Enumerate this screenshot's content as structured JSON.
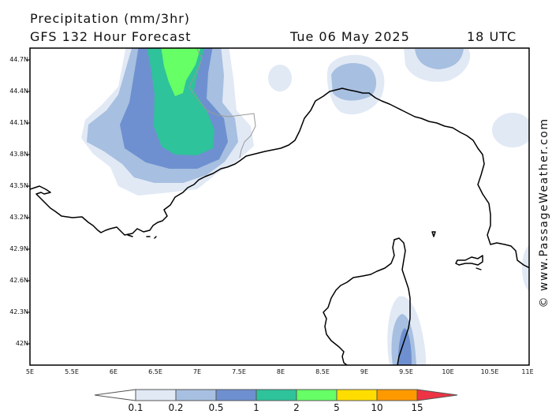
{
  "header": {
    "title": "Precipitation (mm/3hr)",
    "model": "GFS 132 Hour Forecast",
    "date": "Tue 06 May 2025",
    "time": "18 UTC"
  },
  "credit": "© www.PassageWeather.com",
  "axes": {
    "lat_labels": [
      "44.7N",
      "44.4N",
      "44.1N",
      "43.8N",
      "43.5N",
      "43.2N",
      "42.9N",
      "42.6N",
      "42.3N",
      "42N"
    ],
    "lon_labels": [
      "5E",
      "5.5E",
      "6E",
      "6.5E",
      "7E",
      "7.5E",
      "8E",
      "8.5E",
      "9E",
      "9.5E",
      "10E",
      "10.5E",
      "11E"
    ]
  },
  "legend": {
    "labels": [
      "0.1",
      "0.2",
      "0.5",
      "1",
      "2",
      "5",
      "10",
      "15"
    ],
    "colors": [
      "#ffffff",
      "#e1e9f5",
      "#a7bfe0",
      "#6e90d0",
      "#2ec39a",
      "#66ff66",
      "#ffdd00",
      "#ff9900",
      "#ee3344"
    ]
  },
  "map_colors": {
    "very_light": "#e1e9f5",
    "light": "#a7bfe0",
    "medium": "#6e90d0",
    "teal": "#2ec39a",
    "green": "#66ff66",
    "coast": "#000000",
    "border": "#999999"
  }
}
